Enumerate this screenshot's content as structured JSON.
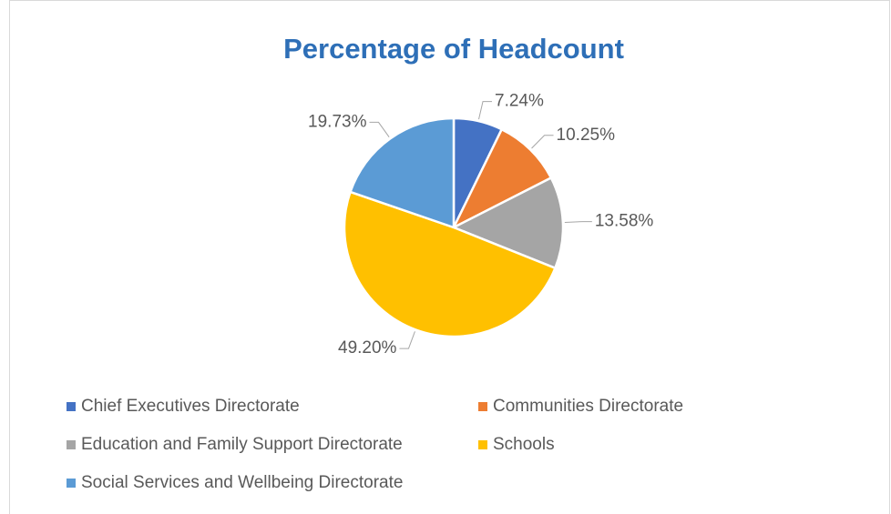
{
  "chart_data": {
    "type": "pie",
    "title": "Percentage of Headcount",
    "categories": [
      "Chief Executives Directorate",
      "Communities Directorate",
      "Education and Family Support Directorate",
      "Schools",
      "Social Services and Wellbeing Directorate"
    ],
    "values": [
      7.24,
      10.25,
      13.58,
      49.2,
      19.73
    ],
    "value_labels": [
      "7.24%",
      "10.25%",
      "13.58%",
      "49.20%",
      "19.73%"
    ],
    "colors": [
      "#4472c4",
      "#ed7d31",
      "#a5a5a5",
      "#ffc000",
      "#5b9bd5"
    ],
    "legend": "bottom"
  }
}
